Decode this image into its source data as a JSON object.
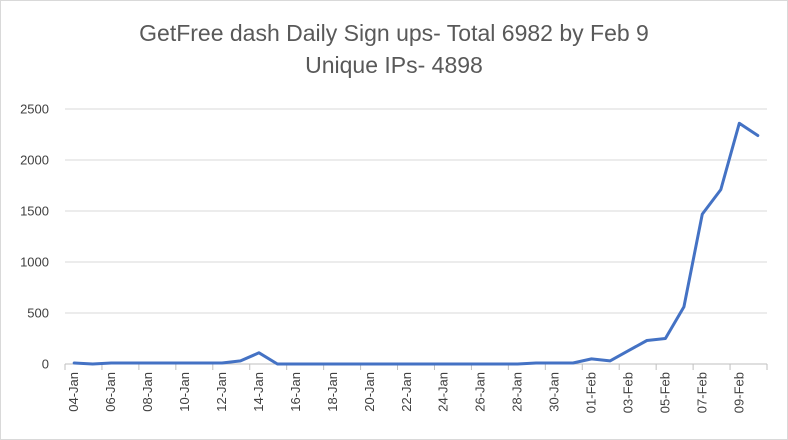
{
  "chart_data": {
    "type": "line",
    "title_line1": "GetFree dash Daily Sign ups- Total 6982 by Feb 9",
    "title_line2": "Unique IPs- 4898",
    "xlabel": "",
    "ylabel": "",
    "ylim": [
      0,
      2500
    ],
    "yticks": [
      "0",
      "500",
      "1000",
      "1500",
      "2000",
      "2500"
    ],
    "grid": true,
    "legend": "none",
    "line_color": "#4472c4",
    "categories": [
      "04-Jan",
      "05-Jan",
      "06-Jan",
      "07-Jan",
      "08-Jan",
      "09-Jan",
      "10-Jan",
      "11-Jan",
      "12-Jan",
      "13-Jan",
      "14-Jan",
      "15-Jan",
      "16-Jan",
      "17-Jan",
      "18-Jan",
      "19-Jan",
      "20-Jan",
      "21-Jan",
      "22-Jan",
      "23-Jan",
      "24-Jan",
      "25-Jan",
      "26-Jan",
      "27-Jan",
      "28-Jan",
      "29-Jan",
      "30-Jan",
      "31-Jan",
      "01-Feb",
      "02-Feb",
      "03-Feb",
      "04-Feb",
      "05-Feb",
      "06-Feb",
      "07-Feb",
      "08-Feb",
      "09-Feb",
      "10-Feb"
    ],
    "tick_labels_shown": [
      "04-Jan",
      "06-Jan",
      "08-Jan",
      "10-Jan",
      "12-Jan",
      "14-Jan",
      "16-Jan",
      "18-Jan",
      "20-Jan",
      "22-Jan",
      "24-Jan",
      "26-Jan",
      "28-Jan",
      "30-Jan",
      "01-Feb",
      "03-Feb",
      "05-Feb",
      "07-Feb",
      "09-Feb"
    ],
    "series": [
      {
        "values": [
          10,
          0,
          10,
          10,
          10,
          10,
          10,
          10,
          10,
          30,
          110,
          0,
          0,
          0,
          0,
          0,
          0,
          0,
          0,
          0,
          0,
          0,
          0,
          0,
          0,
          10,
          10,
          10,
          50,
          30,
          130,
          230,
          250,
          560,
          1470,
          1710,
          2360,
          2240
        ]
      }
    ]
  }
}
